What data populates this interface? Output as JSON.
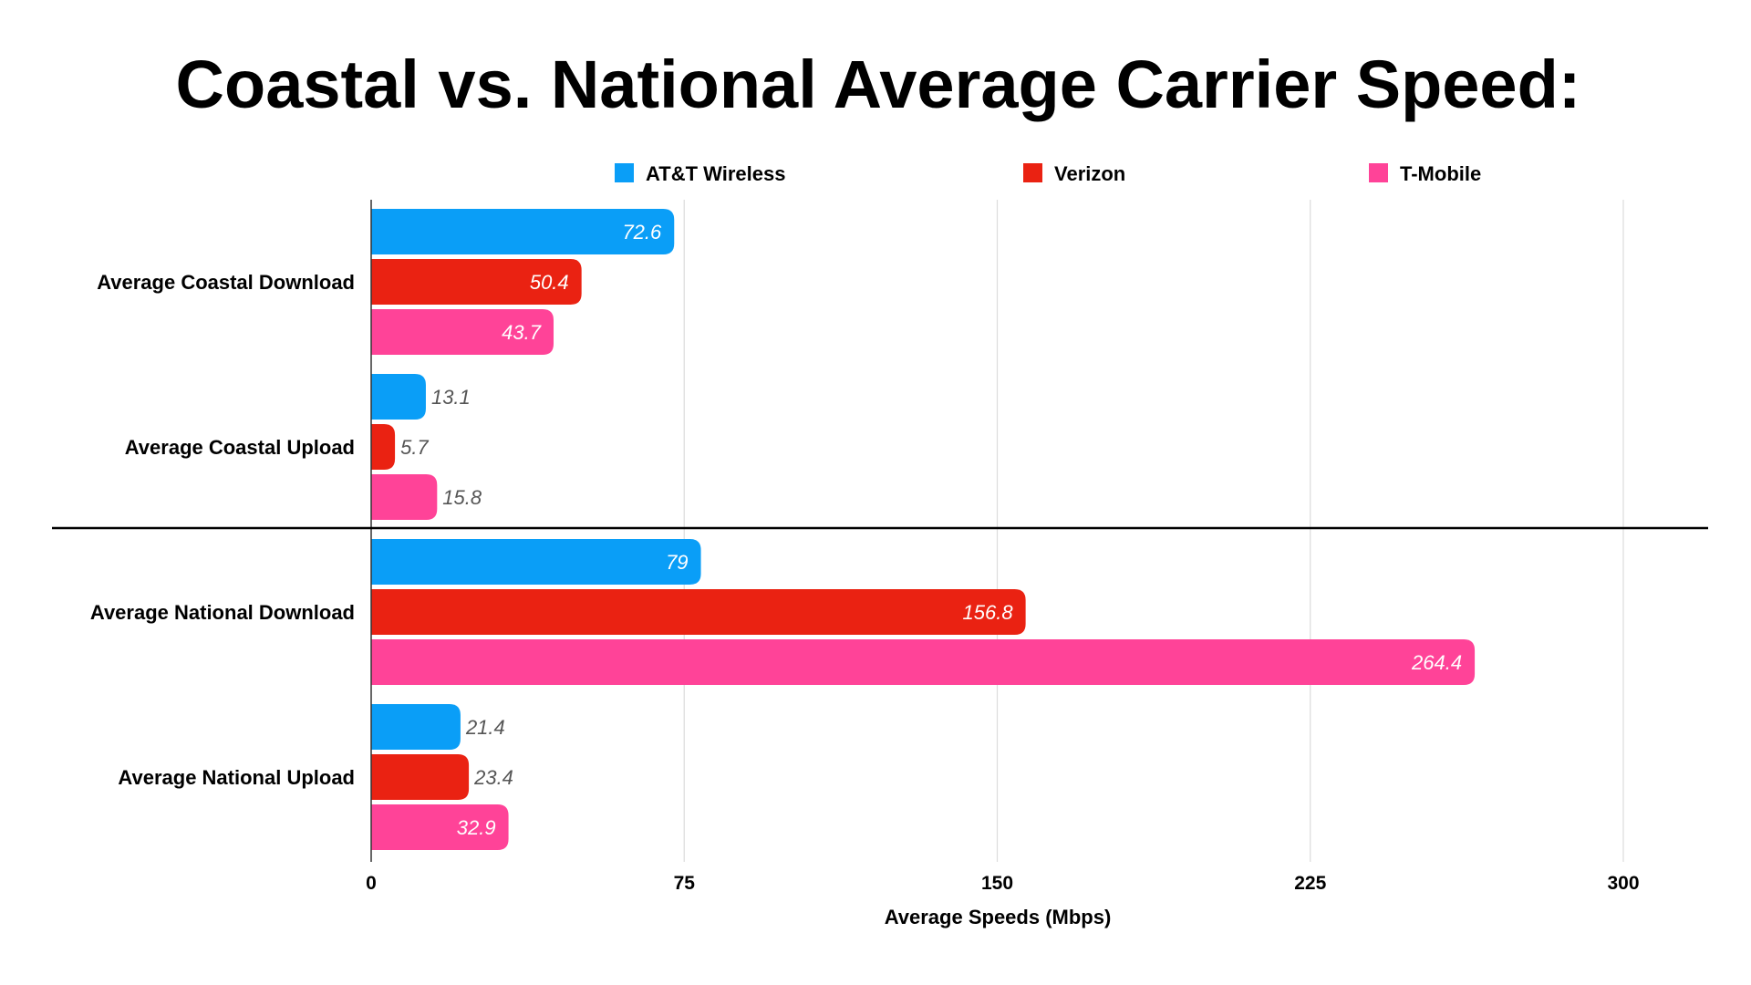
{
  "chart_data": {
    "type": "bar",
    "orientation": "horizontal",
    "title": "Coastal vs. National Average Carrier Speed:",
    "xlabel": "Average Speeds (Mbps)",
    "ylabel": "",
    "xlim": [
      0,
      300
    ],
    "x_ticks": [
      "0",
      "75",
      "150",
      "225",
      "300"
    ],
    "grid": true,
    "legend_position": "top",
    "categories": [
      "Average Coastal Download",
      "Average Coastal Upload",
      "Average National Download",
      "Average National Upload"
    ],
    "series": [
      {
        "name": "AT&T Wireless",
        "color": "#0a9ef7",
        "values": [
          72.6,
          13.1,
          79,
          21.4
        ]
      },
      {
        "name": "Verizon",
        "color": "#ea2212",
        "values": [
          50.4,
          5.7,
          156.8,
          23.4
        ]
      },
      {
        "name": "T-Mobile",
        "color": "#ff4398",
        "values": [
          43.7,
          15.8,
          264.4,
          32.9
        ]
      }
    ],
    "value_labels": [
      [
        "72.6",
        "13.1",
        "79",
        "21.4"
      ],
      [
        "50.4",
        "5.7",
        "156.8",
        "23.4"
      ],
      [
        "43.7",
        "15.8",
        "264.4",
        "32.9"
      ]
    ],
    "separator_after_category": "Average Coastal Upload"
  }
}
